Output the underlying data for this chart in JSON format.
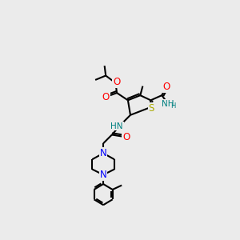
{
  "bg_color": "#ebebeb",
  "bond_color": "#000000",
  "atom_colors": {
    "O": "#ff0000",
    "N": "#0000ff",
    "S": "#aaaa00",
    "HN": "#008080",
    "C": "#000000"
  },
  "fig_size": [
    3.0,
    3.0
  ],
  "dpi": 100
}
